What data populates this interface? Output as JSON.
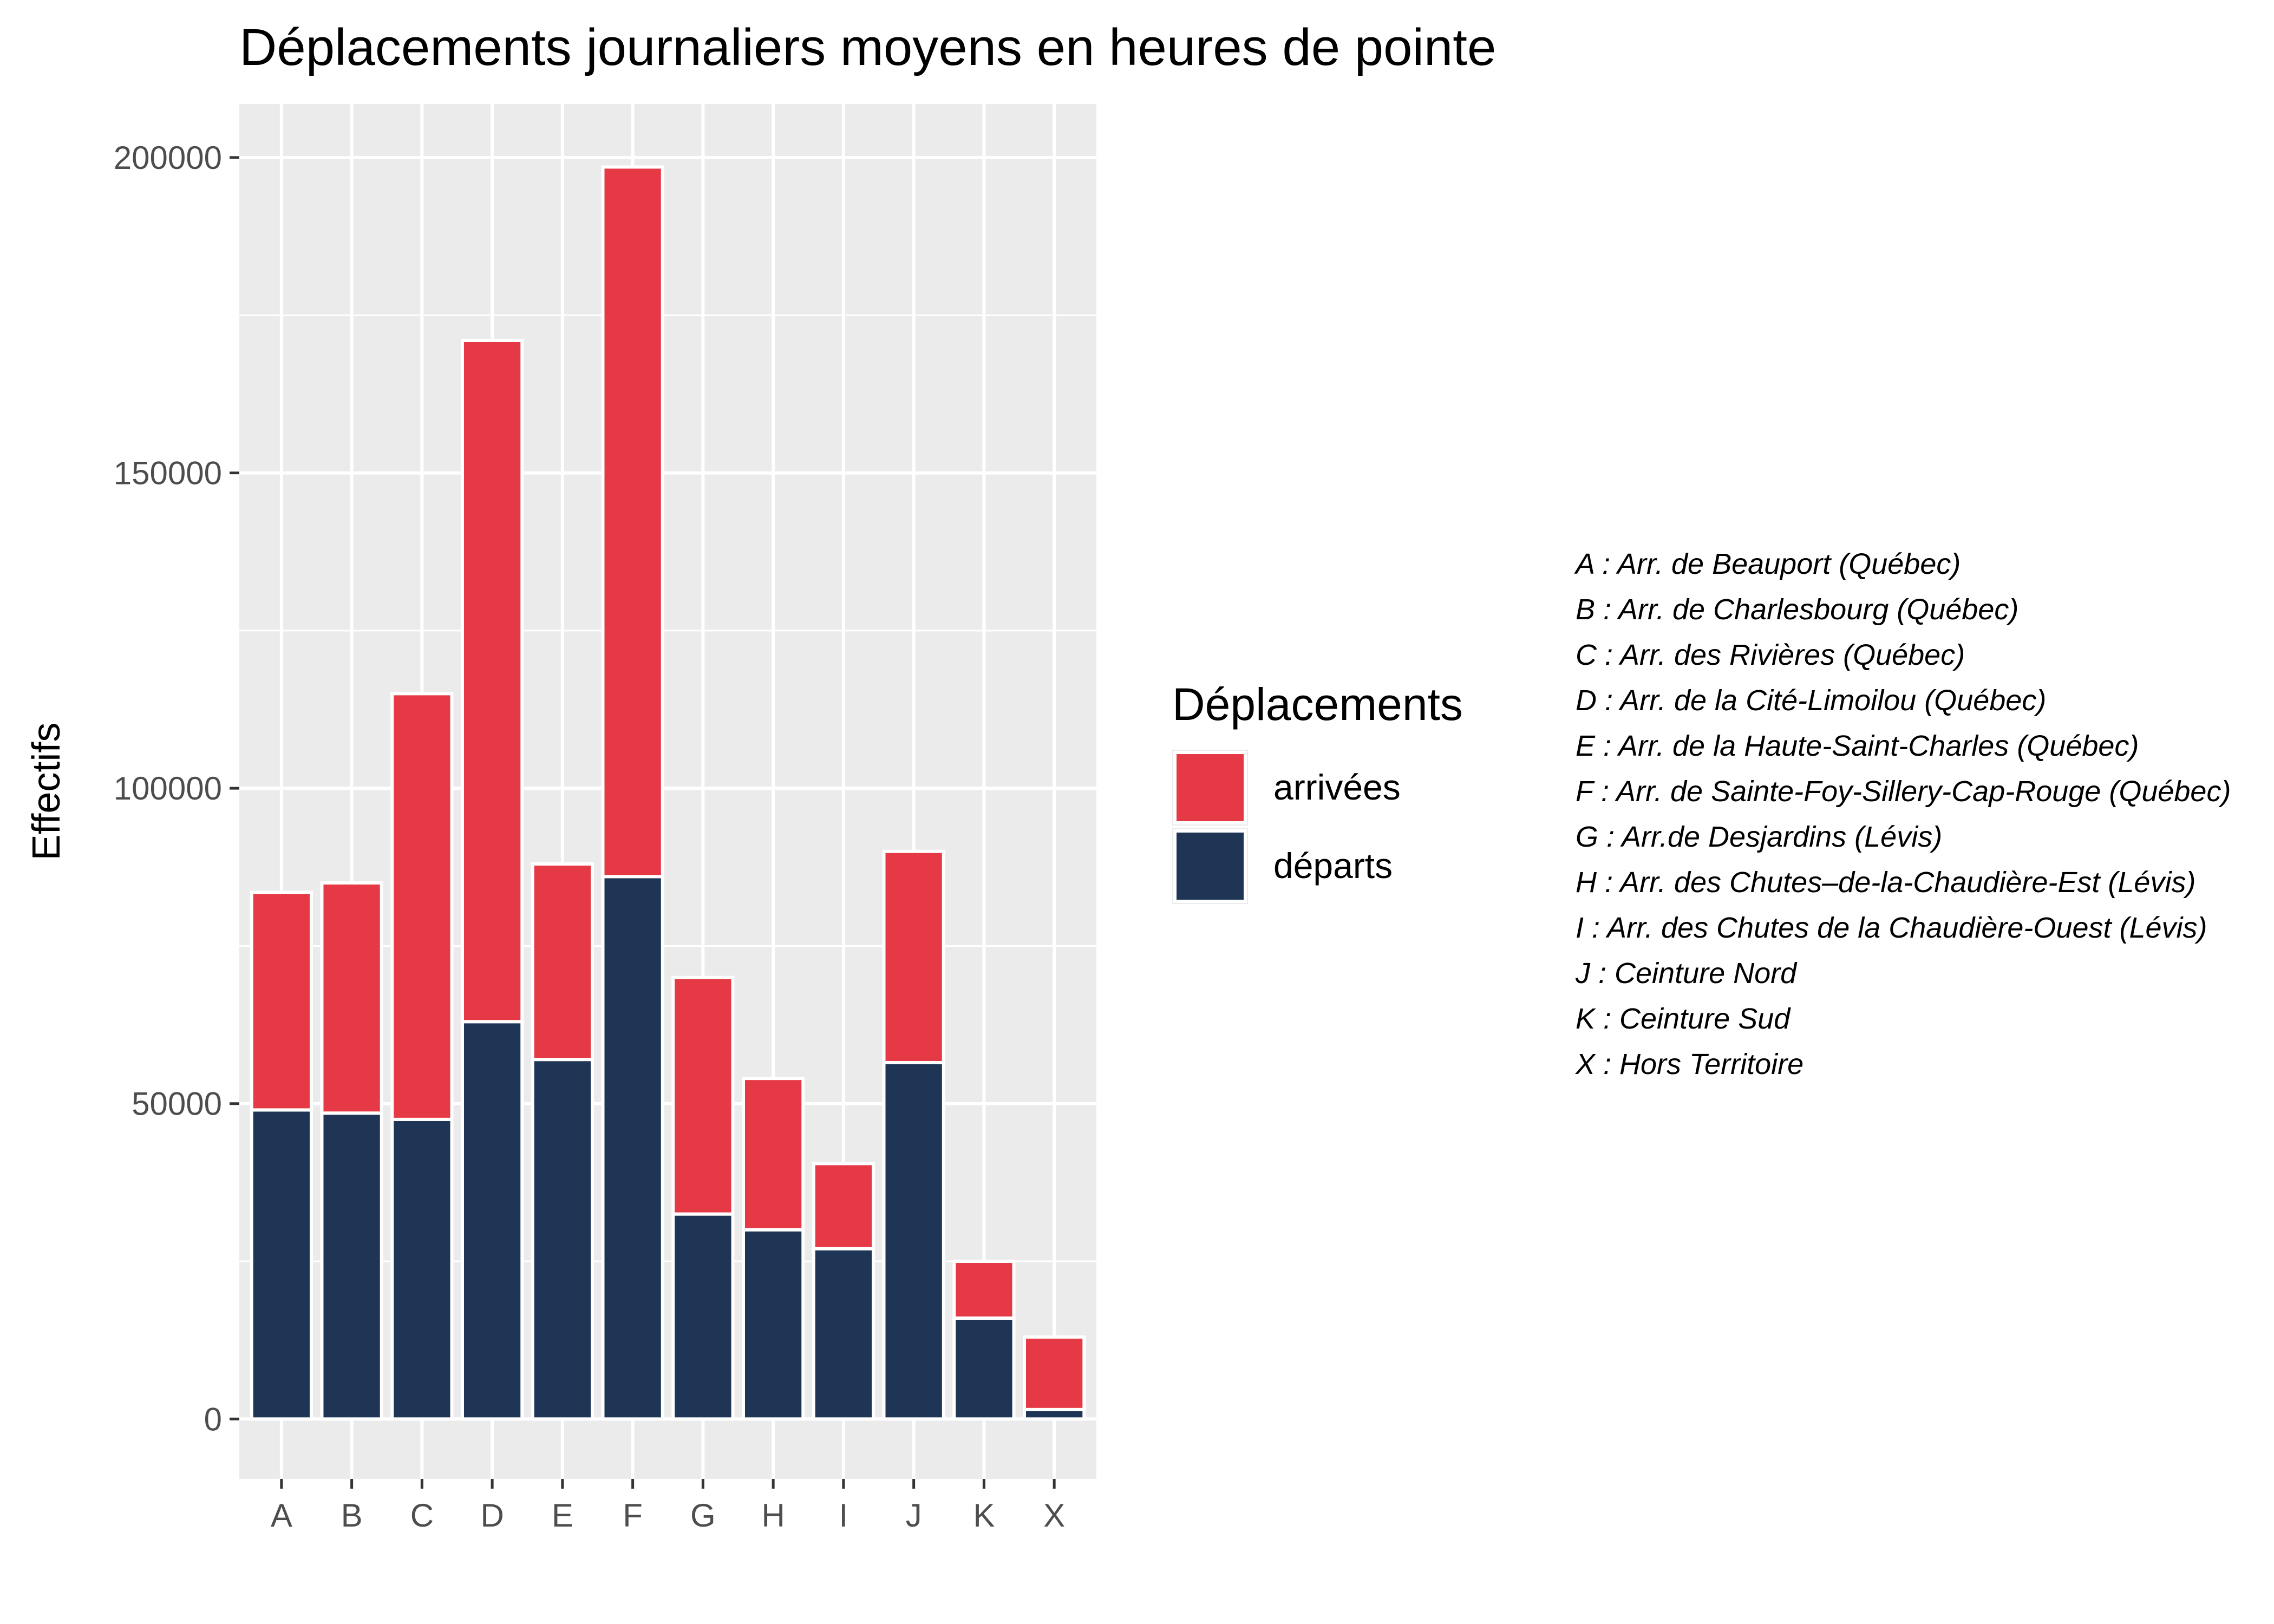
{
  "chart_data": {
    "type": "bar",
    "stacked": true,
    "title": "Déplacements journaliers moyens en heures de pointe",
    "xlabel": "",
    "ylabel": "Effectifs",
    "categories": [
      "A",
      "B",
      "C",
      "D",
      "E",
      "F",
      "G",
      "H",
      "I",
      "J",
      "K",
      "X"
    ],
    "series": [
      {
        "name": "départs",
        "color": "#1f3556",
        "values": [
          49000,
          48500,
          47500,
          63000,
          57000,
          86000,
          32500,
          30000,
          27000,
          56500,
          16000,
          1500
        ]
      },
      {
        "name": "arrivées",
        "color": "#e63946",
        "values": [
          34500,
          36500,
          67500,
          108000,
          31000,
          112500,
          37500,
          24000,
          13500,
          33500,
          9000,
          11500
        ]
      }
    ],
    "yticks": [
      0,
      50000,
      100000,
      150000,
      200000
    ],
    "ylim": [
      -9500,
      208500
    ],
    "grid": true,
    "legend": {
      "title": "Déplacements",
      "position": "right",
      "entries": [
        {
          "label": "arrivées",
          "color": "#e63946"
        },
        {
          "label": "départs",
          "color": "#1f3556"
        }
      ]
    },
    "annotations": [
      "A : Arr. de Beauport (Québec)",
      "B : Arr. de Charlesbourg (Québec)",
      "C : Arr. des Rivières (Québec)",
      "D : Arr. de la Cité-Limoilou (Québec)",
      "E : Arr. de la Haute-Saint-Charles (Québec)",
      "F : Arr. de Sainte-Foy-Sillery-Cap-Rouge (Québec)",
      "G : Arr.de Desjardins (Lévis)",
      "H : Arr. des Chutes–de-la-Chaudière-Est (Lévis)",
      "I : Arr. des Chutes de la Chaudière-Ouest (Lévis)",
      "J : Ceinture Nord",
      "K : Ceinture Sud",
      "X : Hors Territoire"
    ],
    "colors": {
      "panel": "#ebebeb",
      "grid": "#ffffff",
      "bar_outline": "#ffffff"
    }
  }
}
